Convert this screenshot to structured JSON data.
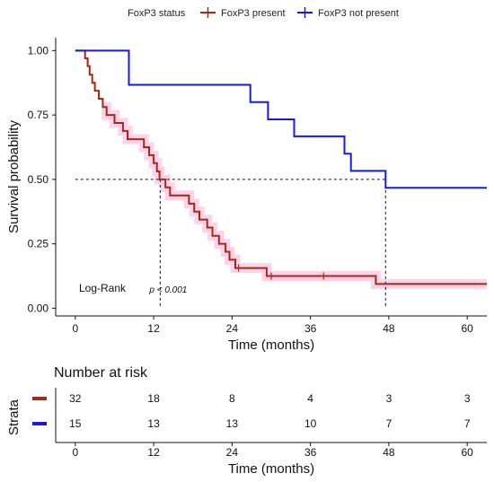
{
  "chart_data": {
    "type": "line",
    "subtype": "kaplan-meier",
    "legend": {
      "title": "FoxP3 status",
      "placement": "top",
      "entries": [
        {
          "label": "FoxP3 present",
          "color": "#a52a10"
        },
        {
          "label": "FoxP3 not present",
          "color": "#1a1adc"
        }
      ]
    },
    "xlabel": "Time (months)",
    "ylabel": "Survival probability",
    "xlim": [
      -3,
      63
    ],
    "ylim": [
      -0.03,
      1.05
    ],
    "x_ticks": [
      0,
      12,
      24,
      36,
      48,
      60
    ],
    "x_tick_labels": [
      "0",
      "12",
      "24",
      "36",
      "48",
      "60"
    ],
    "y_ticks": [
      0,
      0.25,
      0.5,
      0.75,
      1
    ],
    "y_tick_labels": [
      "0.00",
      "0.25",
      "0.50",
      "0.75",
      "1.00"
    ],
    "grid": false,
    "series": [
      {
        "name": "FoxP3 present",
        "color": "#a52a10",
        "band_color": "#ffd1ec",
        "steps": [
          [
            0,
            1.0
          ],
          [
            1.5,
            0.97
          ],
          [
            1.9,
            0.94
          ],
          [
            2.2,
            0.906
          ],
          [
            2.6,
            0.875
          ],
          [
            3.0,
            0.844
          ],
          [
            3.6,
            0.813
          ],
          [
            4.2,
            0.781
          ],
          [
            4.8,
            0.75
          ],
          [
            6.0,
            0.719
          ],
          [
            7.3,
            0.688
          ],
          [
            8.0,
            0.656
          ],
          [
            10.5,
            0.625
          ],
          [
            11.3,
            0.594
          ],
          [
            12.0,
            0.563
          ],
          [
            12.5,
            0.531
          ],
          [
            12.9,
            0.5
          ],
          [
            13.8,
            0.469
          ],
          [
            14.5,
            0.438
          ],
          [
            17.4,
            0.406
          ],
          [
            18.2,
            0.375
          ],
          [
            19.0,
            0.344
          ],
          [
            20.2,
            0.313
          ],
          [
            21.0,
            0.281
          ],
          [
            22.0,
            0.25
          ],
          [
            23.0,
            0.219
          ],
          [
            23.6,
            0.188
          ],
          [
            24.5,
            0.156
          ],
          [
            29.3,
            0.125
          ],
          [
            46.0,
            0.094
          ],
          [
            63,
            0.094
          ]
        ],
        "censor_marks": [
          [
            25,
            0.156
          ],
          [
            30,
            0.125
          ],
          [
            38,
            0.125
          ]
        ]
      },
      {
        "name": "FoxP3 not present",
        "color": "#1a1adc",
        "steps": [
          [
            0,
            1.0
          ],
          [
            8.2,
            0.867
          ],
          [
            26.8,
            0.8
          ],
          [
            29.5,
            0.733
          ],
          [
            33.5,
            0.667
          ],
          [
            41.2,
            0.6
          ],
          [
            42.2,
            0.533
          ],
          [
            47.5,
            0.467
          ],
          [
            63,
            0.467
          ]
        ]
      }
    ],
    "median_lines": [
      {
        "x": 13,
        "y": 0.5
      },
      {
        "x": 47.5,
        "y": 0.5
      }
    ],
    "annotations": {
      "test_label": "Log-Rank",
      "p_value": "p < 0.001",
      "p_at": [
        13,
        0.065
      ]
    },
    "risk_table": {
      "title": "Number at risk",
      "ylabel": "Strata",
      "xlabel": "Time (months)",
      "times": [
        0,
        12,
        24,
        36,
        48,
        60
      ],
      "time_labels": [
        "0",
        "12",
        "24",
        "36",
        "48",
        "60"
      ],
      "rows": [
        {
          "name": "FoxP3 present",
          "color": "#a52a10",
          "counts": [
            "32",
            "18",
            "8",
            "4",
            "3",
            "3"
          ]
        },
        {
          "name": "FoxP3 not present",
          "color": "#1a1adc",
          "counts": [
            "15",
            "13",
            "13",
            "10",
            "7",
            "7"
          ]
        }
      ]
    }
  }
}
